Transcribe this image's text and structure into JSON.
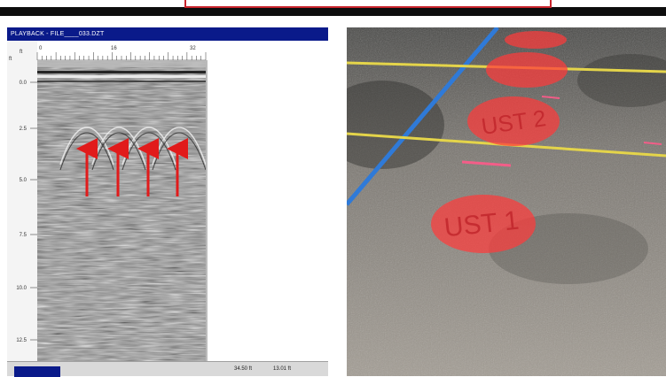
{
  "window": {
    "title": "PLAYBACK - FILE____033.DZT"
  },
  "scan": {
    "horizontal_unit": "ft",
    "vertical_unit": "ft",
    "horizontal_ticks": [
      "0",
      "16",
      "32"
    ],
    "depth_ticks": [
      "0.0",
      "2.5",
      "5.0",
      "7.5",
      "10.0",
      "12.5"
    ],
    "arrow_count": 4,
    "arrow_color": "#e11b1b"
  },
  "status": {
    "distance": "34.50 ft",
    "depth": "13.01 ft"
  },
  "photo": {
    "labels": [
      "UST 1",
      "UST 2"
    ],
    "marking_color": "#ff3b3b",
    "line_colors": {
      "blue": "#2f7ad8",
      "yellow": "#e4d44a"
    }
  }
}
